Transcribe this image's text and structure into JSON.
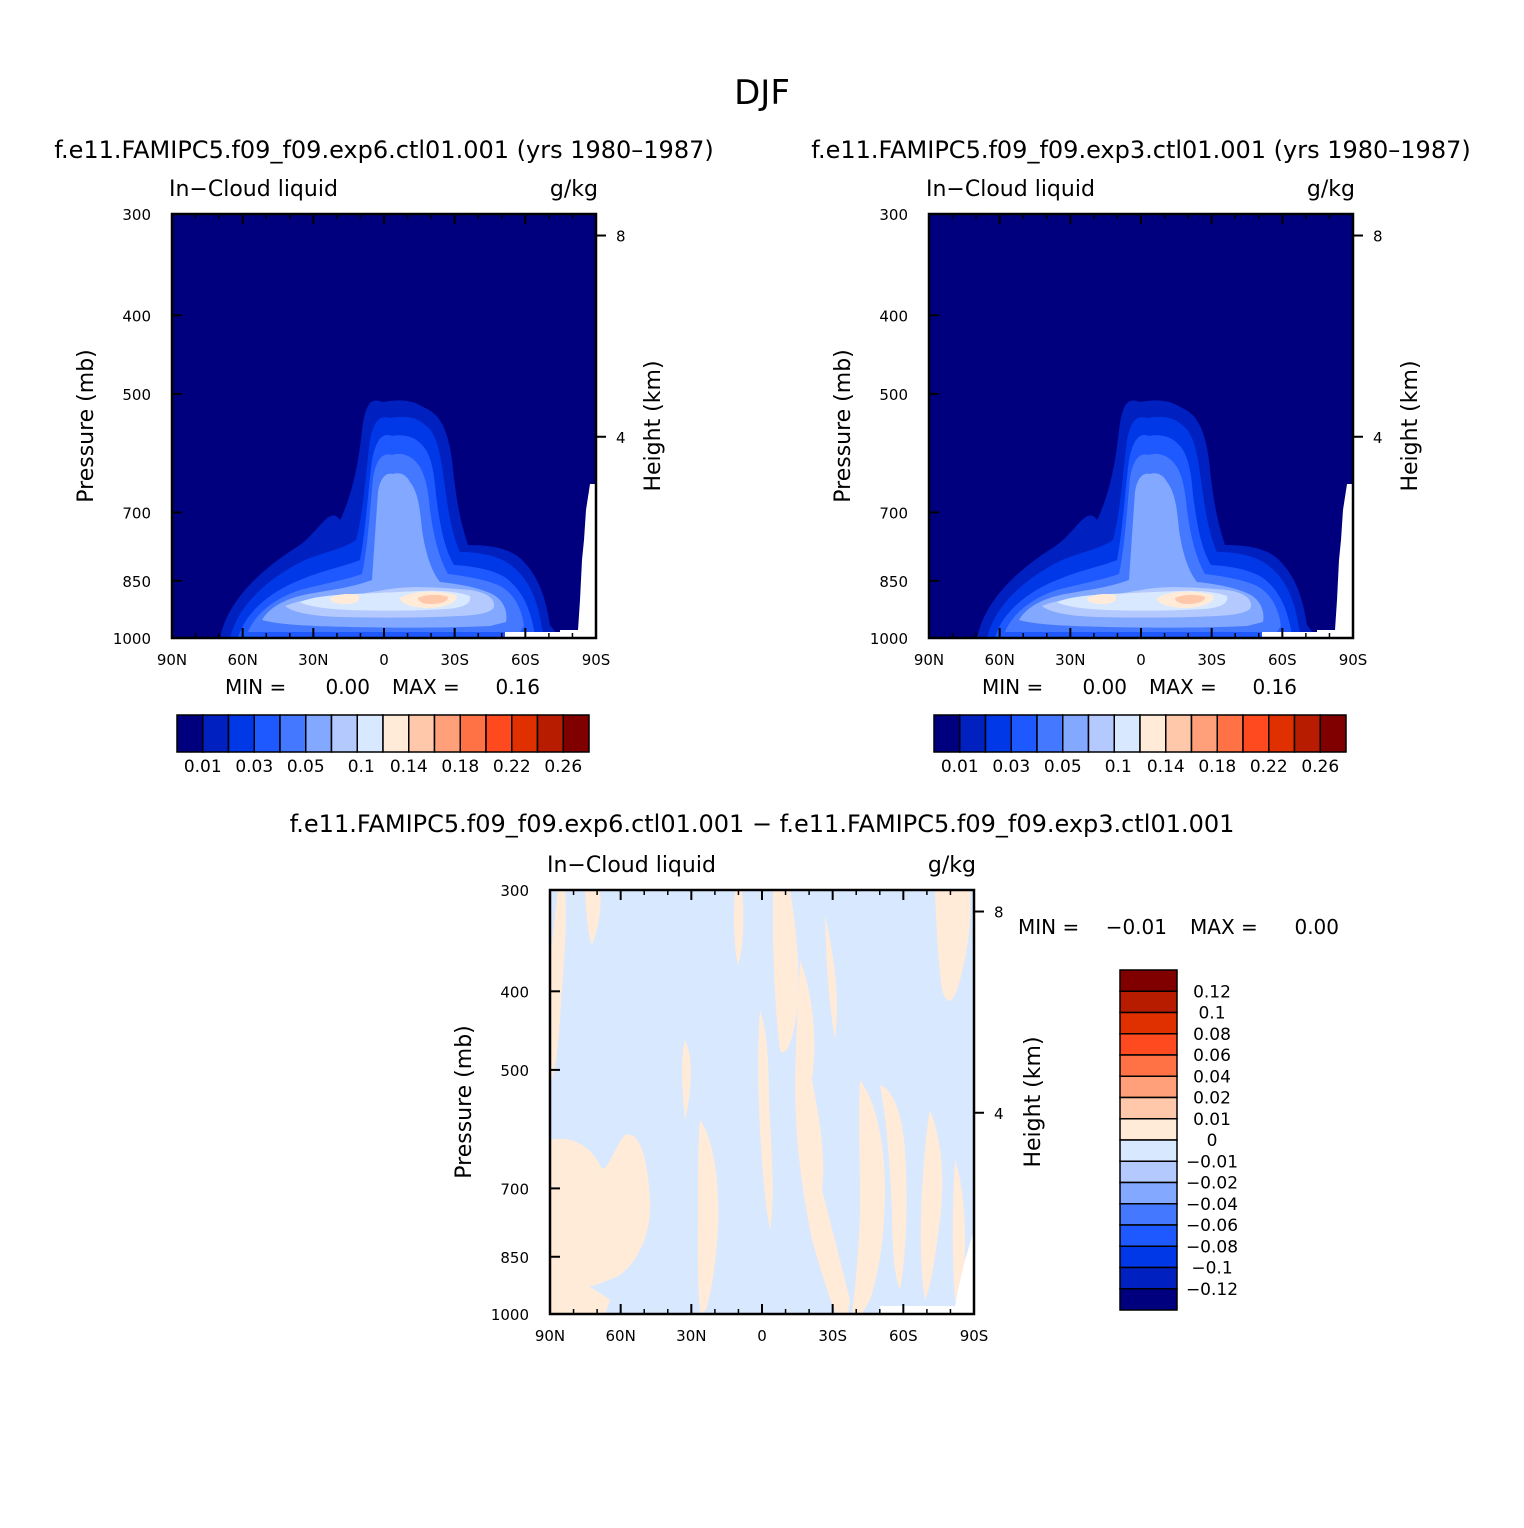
{
  "figure": {
    "title": "DJF",
    "colors": {
      "palette": [
        "#00007f",
        "#0020c0",
        "#0038e8",
        "#1e58ff",
        "#4478ff",
        "#82a8ff",
        "#b4caff",
        "#d8e8ff",
        "#ffebd8",
        "#ffc8aa",
        "#ffa07a",
        "#ff7245",
        "#ff4a20",
        "#e03000",
        "#b81c00",
        "#800000"
      ]
    }
  },
  "chart_data": [
    {
      "type": "heatmap",
      "id": "panel-exp6",
      "title": "f.e11.FAMIPC5.f09_f09.exp6.ctl01.001 (yrs 1980–1987)",
      "variable_label": "In−Cloud liquid",
      "units_label": "g/kg",
      "xlabel": "",
      "ylabel": "Pressure (mb)",
      "ylabel_right": "Height (km)",
      "x_ticks": [
        "90N",
        "60N",
        "30N",
        "0",
        "30S",
        "60S",
        "90S"
      ],
      "x_tick_values": [
        90,
        60,
        30,
        0,
        -30,
        -60,
        -90
      ],
      "xlim": [
        90,
        -90
      ],
      "y_ticks": [
        "300",
        "400",
        "500",
        "700",
        "850",
        "1000"
      ],
      "y_tick_values": [
        300,
        400,
        500,
        700,
        850,
        1000
      ],
      "ylim": [
        1000,
        300
      ],
      "y_scale": "log",
      "right_ticks": [
        "8",
        "4"
      ],
      "right_tick_values_km": [
        8,
        4
      ],
      "min_label": "MIN =",
      "min_value": "0.00",
      "max_label": "MAX =",
      "max_value": "0.16",
      "colorbar": {
        "orientation": "horizontal",
        "labels": [
          "0.01",
          "0.03",
          "0.05",
          "0.1",
          "0.14",
          "0.18",
          "0.22",
          "0.26"
        ],
        "levels": [
          0.01,
          0.02,
          0.03,
          0.04,
          0.05,
          0.07,
          0.1,
          0.12,
          0.14,
          0.16,
          0.18,
          0.2,
          0.22,
          0.24,
          0.26
        ]
      },
      "legend": "bottom",
      "grid": false
    },
    {
      "type": "heatmap",
      "id": "panel-exp3",
      "title": "f.e11.FAMIPC5.f09_f09.exp3.ctl01.001 (yrs 1980–1987)",
      "variable_label": "In−Cloud liquid",
      "units_label": "g/kg",
      "xlabel": "",
      "ylabel": "Pressure (mb)",
      "ylabel_right": "Height (km)",
      "x_ticks": [
        "90N",
        "60N",
        "30N",
        "0",
        "30S",
        "60S",
        "90S"
      ],
      "x_tick_values": [
        90,
        60,
        30,
        0,
        -30,
        -60,
        -90
      ],
      "xlim": [
        90,
        -90
      ],
      "y_ticks": [
        "300",
        "400",
        "500",
        "700",
        "850",
        "1000"
      ],
      "y_tick_values": [
        300,
        400,
        500,
        700,
        850,
        1000
      ],
      "ylim": [
        1000,
        300
      ],
      "y_scale": "log",
      "right_ticks": [
        "8",
        "4"
      ],
      "right_tick_values_km": [
        8,
        4
      ],
      "min_label": "MIN =",
      "min_value": "0.00",
      "max_label": "MAX =",
      "max_value": "0.16",
      "colorbar": {
        "orientation": "horizontal",
        "labels": [
          "0.01",
          "0.03",
          "0.05",
          "0.1",
          "0.14",
          "0.18",
          "0.22",
          "0.26"
        ],
        "levels": [
          0.01,
          0.02,
          0.03,
          0.04,
          0.05,
          0.07,
          0.1,
          0.12,
          0.14,
          0.16,
          0.18,
          0.2,
          0.22,
          0.24,
          0.26
        ]
      },
      "legend": "bottom",
      "grid": false
    },
    {
      "type": "heatmap",
      "id": "panel-diff",
      "title": "f.e11.FAMIPC5.f09_f09.exp6.ctl01.001 − f.e11.FAMIPC5.f09_f09.exp3.ctl01.001",
      "variable_label": "In−Cloud liquid",
      "units_label": "g/kg",
      "xlabel": "",
      "ylabel": "Pressure (mb)",
      "ylabel_right": "Height (km)",
      "x_ticks": [
        "90N",
        "60N",
        "30N",
        "0",
        "30S",
        "60S",
        "90S"
      ],
      "x_tick_values": [
        90,
        60,
        30,
        0,
        -30,
        -60,
        -90
      ],
      "xlim": [
        90,
        -90
      ],
      "y_ticks": [
        "300",
        "400",
        "500",
        "700",
        "850",
        "1000"
      ],
      "y_tick_values": [
        300,
        400,
        500,
        700,
        850,
        1000
      ],
      "ylim": [
        1000,
        300
      ],
      "y_scale": "log",
      "right_ticks": [
        "8",
        "4"
      ],
      "right_tick_values_km": [
        8,
        4
      ],
      "min_label": "MIN =",
      "min_value": "−0.01",
      "max_label": "MAX =",
      "max_value": "0.00",
      "colorbar": {
        "orientation": "vertical",
        "labels": [
          "0.12",
          "0.1",
          "0.08",
          "0.06",
          "0.04",
          "0.02",
          "0.01",
          "0",
          "−0.01",
          "−0.02",
          "−0.04",
          "−0.06",
          "−0.08",
          "−0.1",
          "−0.12"
        ],
        "levels": [
          0.12,
          0.1,
          0.08,
          0.06,
          0.04,
          0.02,
          0.01,
          0,
          -0.01,
          -0.02,
          -0.04,
          -0.06,
          -0.08,
          -0.1,
          -0.12
        ]
      },
      "legend": "right",
      "grid": false
    }
  ]
}
